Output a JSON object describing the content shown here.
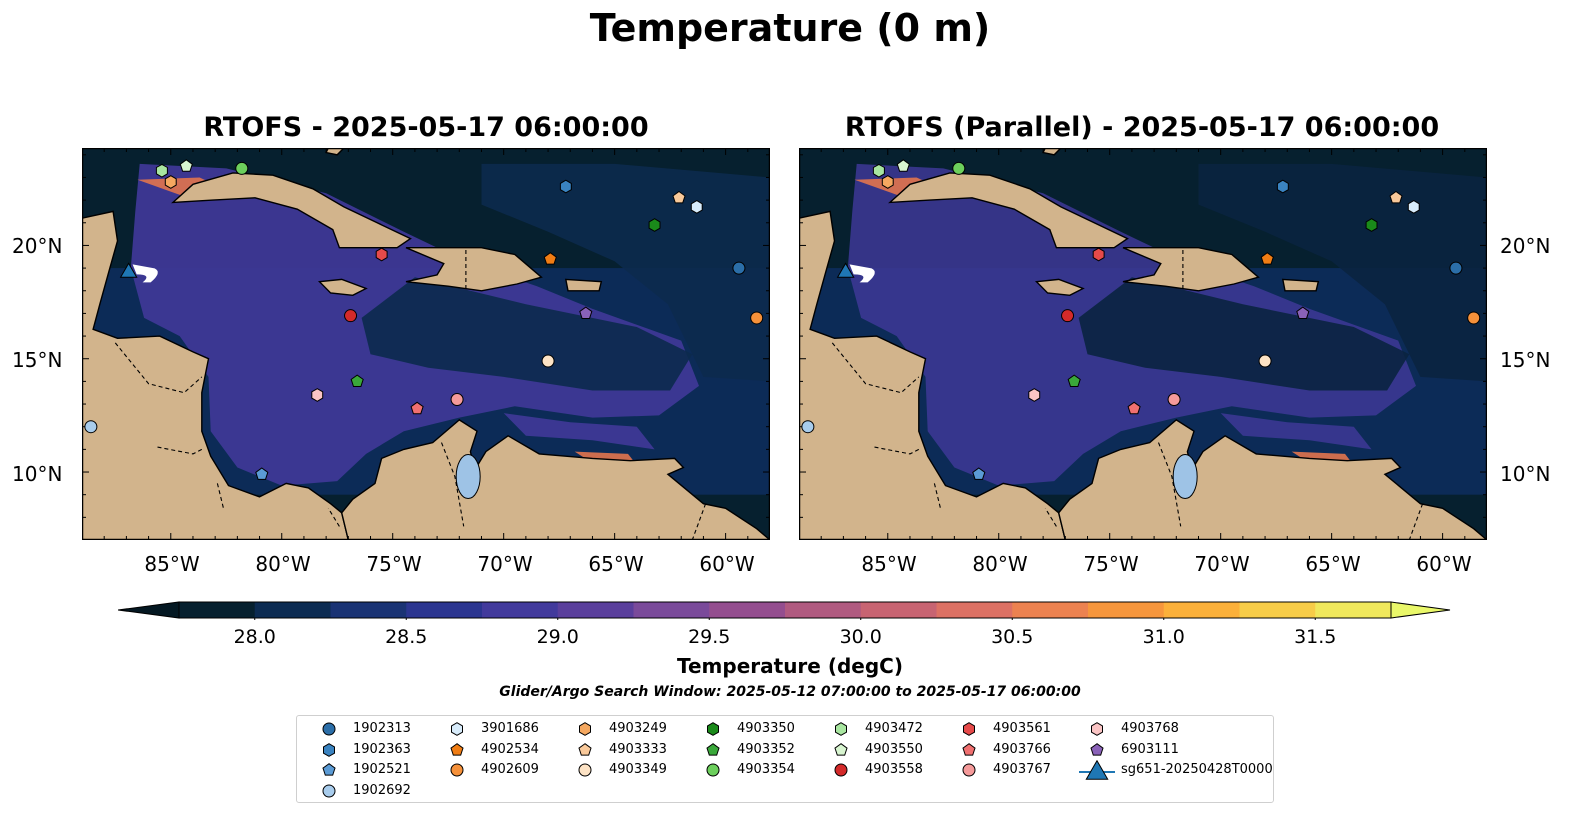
{
  "figure": {
    "title": "Temperature (0 m)",
    "panels": [
      {
        "title": "RTOFS - 2025-05-17 06:00:00"
      },
      {
        "title": "RTOFS (Parallel) - 2025-05-17 06:00:00"
      }
    ],
    "lon_labels": [
      "85°W",
      "80°W",
      "75°W",
      "70°W",
      "65°W",
      "60°W"
    ],
    "lat_labels": [
      "20°N",
      "15°N",
      "10°N"
    ],
    "colorbar": {
      "label": "Temperature (degC)",
      "ticks": [
        "28.0",
        "28.5",
        "29.0",
        "29.5",
        "30.0",
        "30.5",
        "31.0",
        "31.5"
      ],
      "colors": [
        "#06202f",
        "#0c2b52",
        "#1a3374",
        "#2b3590",
        "#423a9c",
        "#5a3f9c",
        "#7a4a9a",
        "#944e8f",
        "#b05a80",
        "#c86472",
        "#dd7164",
        "#ec8250",
        "#f6963c",
        "#fbb03a",
        "#f7cc48",
        "#f0e85c"
      ],
      "under_color": "#041822",
      "over_color": "#eaf86a"
    },
    "search_window": "Glider/Argo Search Window: 2025-05-12 07:00:00 to 2025-05-17 06:00:00",
    "colors": {
      "land": "#d2b48c",
      "ocean_cool": "#06202f",
      "ocean_warm": "#3e3896",
      "lakes": "#9ec3e6"
    }
  },
  "legend": [
    {
      "id": "1902313",
      "marker": "circle",
      "color": "#2b6ea8"
    },
    {
      "id": "1902363",
      "marker": "hexagon",
      "color": "#3a83c0"
    },
    {
      "id": "1902521",
      "marker": "pentagon",
      "color": "#5b9bd5"
    },
    {
      "id": "1902692",
      "marker": "circle",
      "color": "#a8ccec"
    },
    {
      "id": "3901686",
      "marker": "hexagon",
      "color": "#d8ecfb"
    },
    {
      "id": "4902534",
      "marker": "pentagon",
      "color": "#f07d14"
    },
    {
      "id": "4902609",
      "marker": "circle",
      "color": "#f6913a"
    },
    {
      "id": "4903249",
      "marker": "hexagon",
      "color": "#f5a860"
    },
    {
      "id": "4903333",
      "marker": "pentagon",
      "color": "#f9c99a"
    },
    {
      "id": "4903349",
      "marker": "circle",
      "color": "#fde3c5"
    },
    {
      "id": "4903350",
      "marker": "hexagon",
      "color": "#1a8a1a"
    },
    {
      "id": "4903352",
      "marker": "pentagon",
      "color": "#3aa83a"
    },
    {
      "id": "4903354",
      "marker": "circle",
      "color": "#6ccf5c"
    },
    {
      "id": "4903472",
      "marker": "hexagon",
      "color": "#a8e6a0"
    },
    {
      "id": "4903550",
      "marker": "pentagon",
      "color": "#d8f5d0"
    },
    {
      "id": "4903558",
      "marker": "circle",
      "color": "#d42a2a"
    },
    {
      "id": "4903561",
      "marker": "hexagon",
      "color": "#e64a4a"
    },
    {
      "id": "4903766",
      "marker": "pentagon",
      "color": "#f07070"
    },
    {
      "id": "4903767",
      "marker": "circle",
      "color": "#f59a9a"
    },
    {
      "id": "4903768",
      "marker": "hexagon",
      "color": "#fbc5c5"
    },
    {
      "id": "6903111",
      "marker": "pentagon",
      "color": "#8a62b8"
    },
    {
      "id": "sg651-20250428T0000",
      "marker": "triangle",
      "color": "#1f77b4"
    }
  ],
  "floats": [
    {
      "id": "1902313",
      "lon": -59.4,
      "lat": 19.0
    },
    {
      "id": "1902363",
      "lon": -67.2,
      "lat": 22.6
    },
    {
      "id": "1902521",
      "lon": -80.9,
      "lat": 9.9
    },
    {
      "id": "1902692",
      "lon": -88.6,
      "lat": 12.0
    },
    {
      "id": "3901686",
      "lon": -61.3,
      "lat": 21.7
    },
    {
      "id": "4902534",
      "lon": -67.9,
      "lat": 19.4
    },
    {
      "id": "4902609",
      "lon": -58.6,
      "lat": 16.8
    },
    {
      "id": "4903249",
      "lon": -85.0,
      "lat": 22.8
    },
    {
      "id": "4903333",
      "lon": -62.1,
      "lat": 22.1
    },
    {
      "id": "4903349",
      "lon": -68.0,
      "lat": 14.9
    },
    {
      "id": "4903350",
      "lon": -63.2,
      "lat": 20.9
    },
    {
      "id": "4903352",
      "lon": -76.6,
      "lat": 14.0
    },
    {
      "id": "4903354",
      "lon": -81.8,
      "lat": 23.4
    },
    {
      "id": "4903472",
      "lon": -85.4,
      "lat": 23.3
    },
    {
      "id": "4903550",
      "lon": -84.3,
      "lat": 23.5
    },
    {
      "id": "4903558",
      "lon": -76.9,
      "lat": 16.9
    },
    {
      "id": "4903561",
      "lon": -75.5,
      "lat": 19.6
    },
    {
      "id": "4903766",
      "lon": -73.9,
      "lat": 12.8
    },
    {
      "id": "4903767",
      "lon": -72.1,
      "lat": 13.2
    },
    {
      "id": "4903768",
      "lon": -78.4,
      "lat": 13.4
    },
    {
      "id": "6903111",
      "lon": -66.3,
      "lat": 17.0
    },
    {
      "id": "sg651-20250428T0000",
      "lon": -86.9,
      "lat": 18.9
    }
  ]
}
